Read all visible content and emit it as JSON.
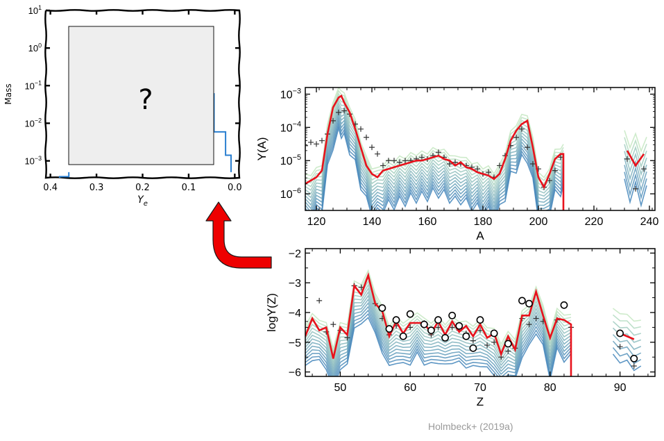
{
  "colors": {
    "highlight": "#e8121c",
    "arrow": "#ee0000",
    "model_dark": "#2a72b8",
    "model_light": "#c6e8c2",
    "mass_line": "#2a7fd0",
    "placeholder_fill": "#eeeeee",
    "observed": "#333333",
    "credit": "#9a9a9a"
  },
  "credit": "Holmbeck+ (2019a)",
  "placeholder_text": "?",
  "chart_data": [
    {
      "id": "mass-ye",
      "type": "line",
      "style": "xkcd",
      "xlabel": "Y_e",
      "ylabel": "Mass",
      "xlim": [
        0.41,
        -0.01
      ],
      "ylim_log10": [
        -3.45,
        1.0
      ],
      "x_ticks": [
        0.4,
        0.3,
        0.2,
        0.1,
        0.0
      ],
      "x_tick_labels": [
        "0.4",
        "0.3",
        "0.2",
        "0.1",
        "0.0"
      ],
      "y_ticks_log10": [
        -3,
        -2,
        -1,
        0,
        1
      ],
      "y_tick_labels": [
        "10^-3",
        "10^-2",
        "10^-1",
        "10^0",
        "10^1"
      ],
      "series": [
        {
          "points": [
            [
              0.38,
              -3.45
            ],
            [
              0.38,
              -3.42
            ],
            [
              0.36,
              -3.42
            ],
            [
              0.36,
              -3.3
            ]
          ]
        },
        {
          "points": [
            [
              0.045,
              -1.2
            ],
            [
              0.045,
              -1.8
            ],
            [
              0.045,
              -2.2
            ],
            [
              0.045,
              -2.23
            ],
            [
              0.02,
              -2.23
            ],
            [
              0.02,
              -2.85
            ],
            [
              0.008,
              -2.85
            ],
            [
              0.008,
              -3.3
            ]
          ]
        }
      ],
      "hidden_region_text": "?"
    },
    {
      "id": "abundance-a",
      "type": "line",
      "xlabel": "A",
      "ylabel": "Y(A)",
      "xlim": [
        116,
        242
      ],
      "ylim_log10": [
        -6.5,
        -2.8
      ],
      "x_ticks": [
        120,
        140,
        160,
        180,
        200,
        220,
        240
      ],
      "x_tick_labels": [
        "120",
        "140",
        "160",
        "180",
        "200",
        "220",
        "240"
      ],
      "y_ticks_log10": [
        -6,
        -5,
        -4,
        -3
      ],
      "y_tick_labels": [
        "10^-6",
        "10^-5",
        "10^-4",
        "10^-3"
      ],
      "highlight": [
        [
          116,
          -5.7
        ],
        [
          118,
          -5.6
        ],
        [
          120,
          -5.5
        ],
        [
          122,
          -5.3
        ],
        [
          124,
          -4.2
        ],
        [
          126,
          -3.4
        ],
        [
          128,
          -3.1
        ],
        [
          129,
          -3.05
        ],
        [
          130,
          -3.25
        ],
        [
          132,
          -3.55
        ],
        [
          134,
          -4.05
        ],
        [
          136,
          -4.6
        ],
        [
          138,
          -5.15
        ],
        [
          140,
          -5.4
        ],
        [
          142,
          -5.5
        ],
        [
          144,
          -5.3
        ],
        [
          146,
          -5.25
        ],
        [
          148,
          -5.2
        ],
        [
          150,
          -5.15
        ],
        [
          152,
          -5.1
        ],
        [
          154,
          -5.05
        ],
        [
          156,
          -5.0
        ],
        [
          158,
          -5.0
        ],
        [
          160,
          -4.95
        ],
        [
          162,
          -4.9
        ],
        [
          164,
          -4.85
        ],
        [
          166,
          -4.95
        ],
        [
          168,
          -5.0
        ],
        [
          170,
          -5.15
        ],
        [
          172,
          -5.05
        ],
        [
          174,
          -5.2
        ],
        [
          176,
          -5.25
        ],
        [
          178,
          -5.35
        ],
        [
          180,
          -5.4
        ],
        [
          182,
          -5.45
        ],
        [
          184,
          -5.55
        ],
        [
          186,
          -5.4
        ],
        [
          188,
          -4.95
        ],
        [
          190,
          -4.4
        ],
        [
          192,
          -4.1
        ],
        [
          194,
          -3.9
        ],
        [
          196,
          -3.8
        ],
        [
          198,
          -4.6
        ],
        [
          200,
          -5.5
        ],
        [
          202,
          -5.8
        ],
        [
          204,
          -5.4
        ],
        [
          206,
          -4.95
        ],
        [
          208,
          -4.8
        ],
        [
          209,
          -4.8
        ],
        [
          209,
          -6.5
        ]
      ],
      "highlight_tail": [
        [
          232,
          -4.7
        ],
        [
          235,
          -5.15
        ],
        [
          238,
          -4.8
        ]
      ],
      "observed_plus": [
        [
          116,
          -4.55
        ],
        [
          118,
          -4.45
        ],
        [
          120,
          -4.5
        ],
        [
          122,
          -4.4
        ],
        [
          124,
          -4.2
        ],
        [
          126,
          -3.8
        ],
        [
          128,
          -3.55
        ],
        [
          130,
          -3.5
        ],
        [
          132,
          -3.6
        ],
        [
          134,
          -3.9
        ],
        [
          136,
          -4.05
        ],
        [
          138,
          -4.3
        ],
        [
          140,
          -4.6
        ],
        [
          142,
          -4.8
        ],
        [
          144,
          -5.15
        ],
        [
          146,
          -5.0
        ],
        [
          148,
          -5.0
        ],
        [
          150,
          -5.05
        ],
        [
          152,
          -5.0
        ],
        [
          154,
          -5.0
        ],
        [
          156,
          -4.95
        ],
        [
          158,
          -4.9
        ],
        [
          160,
          -4.95
        ],
        [
          162,
          -4.85
        ],
        [
          164,
          -4.75
        ],
        [
          166,
          -4.9
        ],
        [
          168,
          -5.1
        ],
        [
          170,
          -5.05
        ],
        [
          172,
          -5.1
        ],
        [
          174,
          -5.15
        ],
        [
          176,
          -5.2
        ],
        [
          178,
          -5.25
        ],
        [
          180,
          -5.4
        ],
        [
          182,
          -5.35
        ],
        [
          184,
          -5.5
        ],
        [
          186,
          -5.15
        ],
        [
          188,
          -4.85
        ],
        [
          190,
          -4.55
        ],
        [
          192,
          -4.3
        ],
        [
          194,
          -4.05
        ],
        [
          196,
          -4.6
        ],
        [
          198,
          -5.1
        ],
        [
          200,
          -5.25
        ],
        [
          202,
          -5.8
        ],
        [
          204,
          -5.6
        ],
        [
          206,
          -5.3
        ],
        [
          208,
          -4.9
        ],
        [
          232,
          -4.95
        ],
        [
          235,
          -5.85
        ],
        [
          238,
          -5.25
        ]
      ],
      "model_band": {
        "curves": 14,
        "top_offset": 0.22,
        "bottom_offset": -1.1,
        "zigzag": 0.18
      }
    },
    {
      "id": "abundance-z",
      "type": "line",
      "xlabel": "Z",
      "ylabel": "logY(Z)",
      "xlim": [
        45,
        95
      ],
      "ylim": [
        -6.15,
        -1.85
      ],
      "x_ticks": [
        50,
        60,
        70,
        80,
        90
      ],
      "x_tick_labels": [
        "50",
        "60",
        "70",
        "80",
        "90"
      ],
      "y_ticks": [
        -6,
        -5,
        -4,
        -3,
        -2
      ],
      "y_tick_labels": [
        "−6",
        "−5",
        "−4",
        "−3",
        "−2"
      ],
      "highlight": [
        [
          45,
          -4.8
        ],
        [
          46,
          -4.2
        ],
        [
          47,
          -4.6
        ],
        [
          48,
          -4.5
        ],
        [
          49,
          -5.55
        ],
        [
          50,
          -4.5
        ],
        [
          51,
          -4.75
        ],
        [
          52,
          -3.1
        ],
        [
          53,
          -3.4
        ],
        [
          54,
          -2.75
        ],
        [
          55,
          -3.7
        ],
        [
          56,
          -3.95
        ],
        [
          57,
          -4.8
        ],
        [
          58,
          -4.3
        ],
        [
          59,
          -4.7
        ],
        [
          60,
          -4.35
        ],
        [
          61,
          -4.35
        ],
        [
          62,
          -4.35
        ],
        [
          63,
          -4.7
        ],
        [
          64,
          -4.3
        ],
        [
          65,
          -4.75
        ],
        [
          66,
          -4.3
        ],
        [
          67,
          -4.65
        ],
        [
          68,
          -4.45
        ],
        [
          69,
          -4.8
        ],
        [
          70,
          -4.4
        ],
        [
          71,
          -4.85
        ],
        [
          72,
          -4.7
        ],
        [
          73,
          -5.4
        ],
        [
          74,
          -4.8
        ],
        [
          75,
          -5.25
        ],
        [
          76,
          -4.1
        ],
        [
          77,
          -4.1
        ],
        [
          78,
          -3.3
        ],
        [
          79,
          -4.1
        ],
        [
          80,
          -4.85
        ],
        [
          81,
          -4.2
        ],
        [
          82,
          -4.25
        ],
        [
          83,
          -4.4
        ],
        [
          83,
          -6.15
        ]
      ],
      "highlight_tail": [
        [
          90,
          -4.7
        ],
        [
          92,
          -4.9
        ]
      ],
      "observed_circles": [
        [
          56,
          -3.85
        ],
        [
          57,
          -4.55
        ],
        [
          58,
          -4.25
        ],
        [
          59,
          -4.8
        ],
        [
          60,
          -4.05
        ],
        [
          62,
          -4.4
        ],
        [
          63,
          -4.6
        ],
        [
          64,
          -4.25
        ],
        [
          65,
          -4.85
        ],
        [
          66,
          -4.1
        ],
        [
          67,
          -4.45
        ],
        [
          68,
          -4.8
        ],
        [
          69,
          -5.2
        ],
        [
          70,
          -4.25
        ],
        [
          72,
          -4.7
        ],
        [
          74,
          -5.05
        ],
        [
          76,
          -3.6
        ],
        [
          77,
          -3.7
        ],
        [
          82,
          -3.75
        ],
        [
          90,
          -4.7
        ],
        [
          92,
          -5.55
        ]
      ],
      "observed_plus": [
        [
          45,
          -4.3
        ],
        [
          47,
          -3.6
        ],
        [
          48,
          -4.65
        ],
        [
          49,
          -4.4
        ],
        [
          50,
          -4.6
        ],
        [
          51,
          -4.85
        ],
        [
          52,
          -3.1
        ],
        [
          53,
          -3.15
        ],
        [
          55,
          -3.7
        ],
        [
          56,
          -4.2
        ],
        [
          57,
          -4.75
        ],
        [
          58,
          -4.45
        ],
        [
          59,
          -4.75
        ],
        [
          60,
          -4.5
        ],
        [
          62,
          -4.35
        ],
        [
          63,
          -4.75
        ],
        [
          64,
          -4.5
        ],
        [
          65,
          -4.8
        ],
        [
          66,
          -4.5
        ],
        [
          67,
          -4.6
        ],
        [
          68,
          -4.7
        ],
        [
          69,
          -4.95
        ],
        [
          70,
          -4.6
        ],
        [
          71,
          -5.1
        ],
        [
          72,
          -5.0
        ],
        [
          73,
          -5.5
        ],
        [
          74,
          -5.3
        ],
        [
          75,
          -5.2
        ],
        [
          76,
          -4.2
        ],
        [
          77,
          -4.4
        ],
        [
          78,
          -4.2
        ],
        [
          79,
          -4.3
        ],
        [
          81,
          -4.25
        ],
        [
          83,
          -4.5
        ],
        [
          90,
          -5.15
        ],
        [
          92,
          -5.8
        ]
      ],
      "model_band": {
        "curves": 14,
        "top_offset": 0.25,
        "bottom_offset": -1.2,
        "zigzag": 0.22
      }
    }
  ]
}
